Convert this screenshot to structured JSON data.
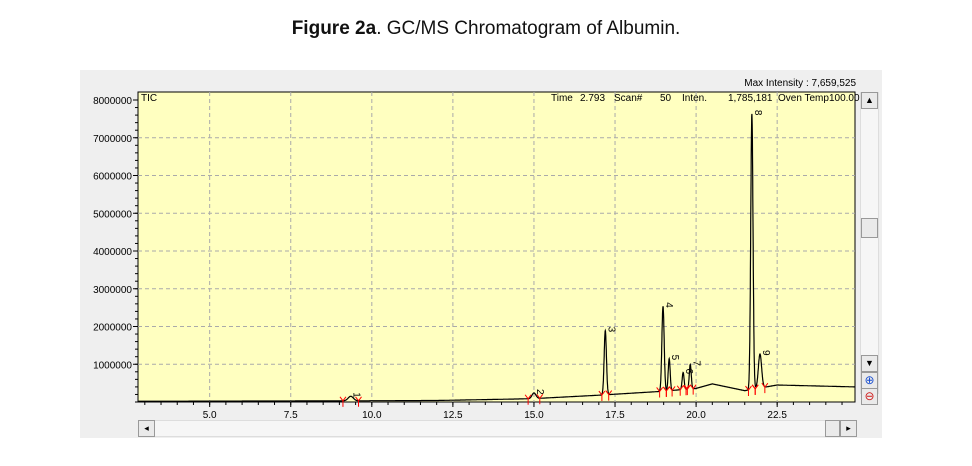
{
  "figure_label": "Figure 2a",
  "figure_caption": ". GC/MS Chromatogram of Albumin.",
  "header": {
    "max_intensity": "Max Intensity : 7,659,525",
    "trace_label": "TIC",
    "time_label": "Time",
    "time_value": "2.793",
    "scan_label": "Scan#",
    "scan_value": "50",
    "inten_label": "Inten.",
    "inten_value": "1,785,181",
    "oven_label": "Oven Temp100.00"
  },
  "colors": {
    "plot_bg": "#ffffc0",
    "trace": "#000000",
    "markers": "#ff0000"
  },
  "chart_data": {
    "type": "line",
    "title": "",
    "xlabel": "",
    "ylabel": "",
    "xlim": [
      2.79,
      24.9
    ],
    "ylim": [
      0,
      8000000
    ],
    "grid": true,
    "x_ticks": [
      "5.0",
      "7.5",
      "10.0",
      "12.5",
      "15.0",
      "17.5",
      "20.0",
      "22.5"
    ],
    "y_ticks": [
      "1000000",
      "2000000",
      "3000000",
      "4000000",
      "5000000",
      "6000000",
      "7000000",
      "8000000"
    ],
    "baseline": [
      [
        2.79,
        20000
      ],
      [
        9.0,
        30000
      ],
      [
        12.0,
        40000
      ],
      [
        14.5,
        80000
      ],
      [
        15.0,
        90000
      ],
      [
        17.0,
        180000
      ],
      [
        18.9,
        280000
      ],
      [
        20.0,
        360000
      ],
      [
        20.5,
        480000
      ],
      [
        21.5,
        300000
      ],
      [
        22.5,
        450000
      ],
      [
        24.9,
        400000
      ]
    ],
    "peaks": [
      {
        "label": "1",
        "rt": 9.35,
        "height": 120000,
        "width": 0.08
      },
      {
        "label": "2",
        "rt": 15.0,
        "height": 150000,
        "width": 0.06
      },
      {
        "label": "3",
        "rt": 17.2,
        "height": 1700000,
        "width": 0.035
      },
      {
        "label": "4",
        "rt": 18.98,
        "height": 2250000,
        "width": 0.035
      },
      {
        "label": "5",
        "rt": 19.17,
        "height": 850000,
        "width": 0.03
      },
      {
        "label": "6",
        "rt": 19.6,
        "height": 450000,
        "width": 0.03
      },
      {
        "label": "7",
        "rt": 19.82,
        "height": 650000,
        "width": 0.03
      },
      {
        "label": "8",
        "rt": 21.72,
        "height": 7300000,
        "width": 0.035
      },
      {
        "label": "9",
        "rt": 21.97,
        "height": 900000,
        "width": 0.05
      }
    ]
  }
}
